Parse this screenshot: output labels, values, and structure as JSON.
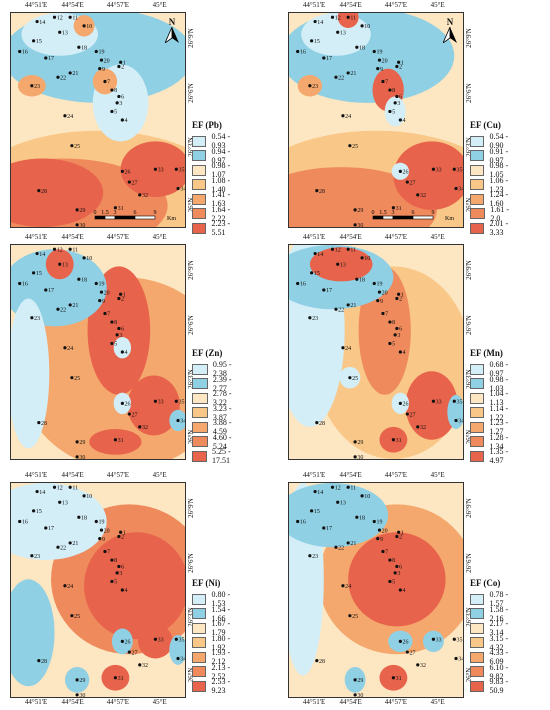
{
  "lon_labels": [
    "44°51'E",
    "44°54'E",
    "44°57'E",
    "45°E"
  ],
  "lat_labels": [
    "26°9'N",
    "26°6'N",
    "26°3'N",
    "26°N"
  ],
  "north_label": "N",
  "scale": {
    "ticks": [
      "0",
      "1.5",
      "3",
      "6",
      "9"
    ],
    "unit": "Km"
  },
  "colors": {
    "pale_blue": "#d3eef7",
    "blue": "#8fd0e4",
    "cream": "#fde6c2",
    "light_orange": "#f9c888",
    "orange": "#f4a86d",
    "dark_orange": "#ef8a5d",
    "red": "#e8634b"
  },
  "panels": [
    {
      "title": "EF (Pb)",
      "ranges": [
        "0.54 - 0.93",
        "0.94 - 0.97",
        "0.98 - 1.07",
        "1.08 - 1.40",
        "1.41 - 1.63",
        "1.64 - 2.22",
        "2.23 - 5.51"
      ]
    },
    {
      "title": "EF (Cu)",
      "ranges": [
        "0.54 - 0.90",
        "0.91 - 0.97",
        "0.98 - 1.05",
        "1.06 - 1.23",
        "1.24 - 1.60",
        "1.61 - 2.0",
        "2.01 - 3.33"
      ]
    },
    {
      "title": "EF (Zn)",
      "ranges": [
        "0.95 - 2.38",
        "2.39 - 2.77",
        "2.78 - 3.22",
        "3.23 - 3.87",
        "3.88 - 4.59",
        "4.60 - 5.24",
        "5.25 - 17.51"
      ]
    },
    {
      "title": "EF (Mn)",
      "ranges": [
        "0.68 - 0.97",
        "0.98 - 1.03",
        "1.04 - 1.13",
        "1.14 - 1.22",
        "1.23 - 1.27",
        "1.28 - 1.34",
        "1.35 - 4.97"
      ]
    },
    {
      "title": "EF (Ni)",
      "ranges": [
        "0.80 - 1.53",
        "1.54 - 1.66",
        "1.67 - 1.79",
        "1.80 - 1.92",
        "1.93 - 2.12",
        "2.13 - 2.52",
        "2.53 - 9.23"
      ]
    },
    {
      "title": "EF (Co)",
      "ranges": [
        "0.78 - 1.57",
        "1.58 - 2.16",
        "2.17 - 3.14",
        "3.15 - 4.32",
        "4.33 - 6.09",
        "6.10 - 9.82",
        "9.83 - 50.9"
      ]
    }
  ],
  "stations": [
    "1",
    "2",
    "3",
    "4",
    "5",
    "6",
    "7",
    "8",
    "9",
    "10",
    "11",
    "12",
    "13",
    "14",
    "15",
    "16",
    "17",
    "18",
    "19",
    "20",
    "21",
    "22",
    "23",
    "24",
    "25",
    "26",
    "27",
    "28",
    "29",
    "30",
    "31",
    "32",
    "33",
    "34",
    "35"
  ]
}
